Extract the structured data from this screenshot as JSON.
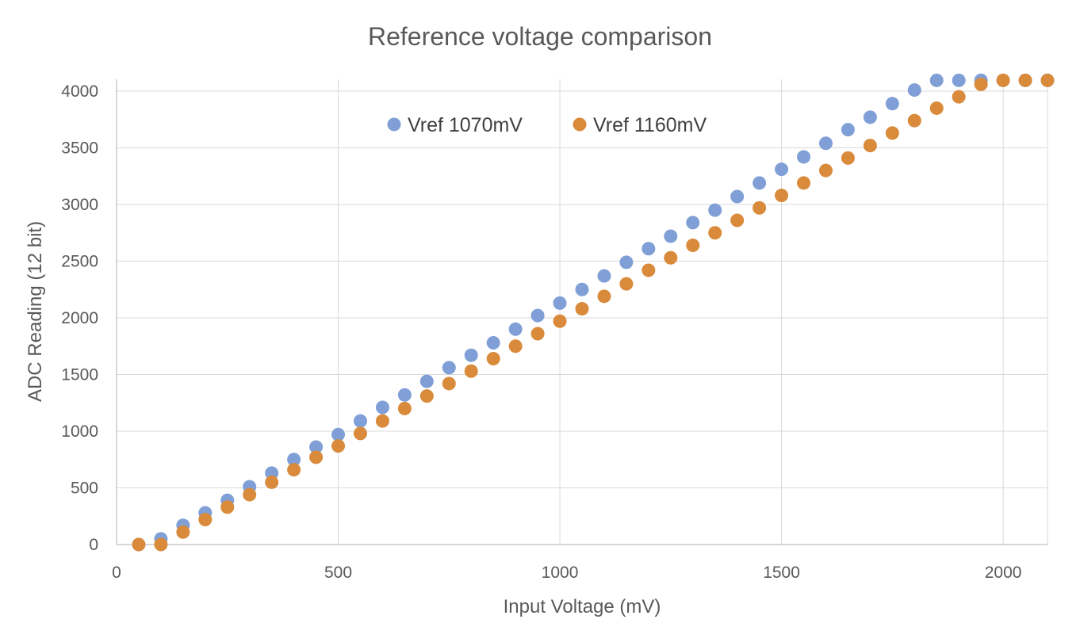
{
  "chart_data": {
    "type": "scatter",
    "title": "Reference voltage comparison",
    "xlabel": "Input Voltage (mV)",
    "ylabel": "ADC Reading (12 bit)",
    "xlim": [
      0,
      2100
    ],
    "ylim": [
      0,
      4000
    ],
    "xticks": [
      0,
      500,
      1000,
      1500,
      2000
    ],
    "yticks": [
      0,
      500,
      1000,
      1500,
      2000,
      2500,
      3000,
      3500,
      4000
    ],
    "x_tick_labels": [
      "0",
      "500",
      "1000",
      "1500",
      "2000"
    ],
    "y_tick_labels": [
      "0",
      "500",
      "1000",
      "1500",
      "2000",
      "2500",
      "3000",
      "3500",
      "4000"
    ],
    "grid": true,
    "legend_position": "top",
    "x": [
      50,
      100,
      150,
      200,
      250,
      300,
      350,
      400,
      450,
      500,
      550,
      600,
      650,
      700,
      750,
      800,
      850,
      900,
      950,
      1000,
      1050,
      1100,
      1150,
      1200,
      1250,
      1300,
      1350,
      1400,
      1450,
      1500,
      1550,
      1600,
      1650,
      1700,
      1750,
      1800,
      1850,
      1900,
      1950,
      2000,
      2050,
      2100
    ],
    "series": [
      {
        "name": "Vref 1070mV",
        "color": "#7f9fd6",
        "values": [
          0,
          50,
          170,
          280,
          390,
          510,
          630,
          750,
          860,
          970,
          1090,
          1210,
          1320,
          1440,
          1560,
          1670,
          1780,
          1900,
          2020,
          2130,
          2250,
          2370,
          2490,
          2610,
          2720,
          2840,
          2950,
          3070,
          3190,
          3310,
          3420,
          3540,
          3660,
          3770,
          3890,
          4010,
          4095,
          4095,
          4095,
          4095,
          4095,
          4095
        ]
      },
      {
        "name": "Vref 1160mV",
        "color": "#d98a3a",
        "values": [
          0,
          0,
          110,
          220,
          330,
          440,
          550,
          660,
          770,
          870,
          980,
          1090,
          1200,
          1310,
          1420,
          1530,
          1640,
          1750,
          1860,
          1970,
          2080,
          2190,
          2300,
          2420,
          2530,
          2640,
          2750,
          2860,
          2970,
          3080,
          3190,
          3300,
          3410,
          3520,
          3630,
          3740,
          3850,
          3950,
          4060,
          4095,
          4095,
          4095
        ]
      }
    ]
  }
}
